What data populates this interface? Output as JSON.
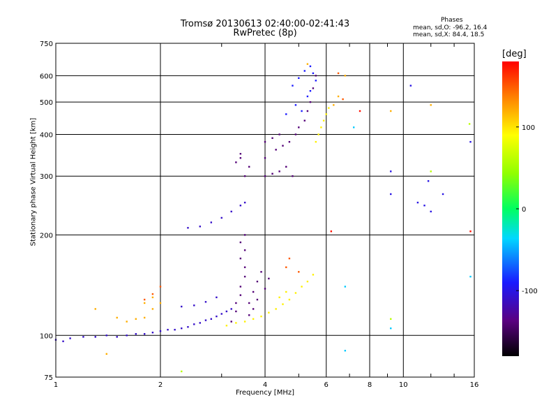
{
  "header": {
    "title_line1": "Tromsø 20130613 02:40:00-02:41:43",
    "title_line2": "RwPretec (8p)",
    "phases_title": "Phases",
    "phases_o": "mean, sd,O: -96.2, 16.4",
    "phases_x": "mean, sd,X: 84.4, 18.5"
  },
  "colorbar": {
    "unit": "[deg]",
    "range": [
      -180,
      180
    ],
    "ticks": [
      "100",
      "0",
      "-100"
    ],
    "tick_values": [
      100,
      0,
      -100
    ]
  },
  "chart_data": {
    "type": "scatter",
    "xlabel": "Frequency [MHz]",
    "ylabel": "Stationary phase Virtual Height [km]",
    "xscale": "log",
    "yscale": "log",
    "xlim": [
      1,
      16
    ],
    "ylim": [
      75,
      750
    ],
    "x_ticks": [
      1,
      2,
      4,
      6,
      8,
      10,
      16
    ],
    "x_tick_labels": [
      "1",
      "2",
      "4",
      "6",
      "8",
      "10",
      "16"
    ],
    "y_ticks": [
      75,
      100,
      200,
      300,
      400,
      500,
      600,
      750
    ],
    "y_tick_labels": [
      "75",
      "100",
      "200",
      "300",
      "400",
      "500",
      "600",
      "750"
    ],
    "grid": true,
    "series": [
      {
        "color_value": -110,
        "points": [
          [
            1.0,
            97
          ],
          [
            1.05,
            96
          ],
          [
            1.1,
            98
          ],
          [
            1.2,
            99
          ],
          [
            1.3,
            99
          ],
          [
            1.4,
            100
          ],
          [
            1.5,
            99
          ],
          [
            1.6,
            100
          ],
          [
            1.7,
            101
          ],
          [
            1.8,
            101
          ],
          [
            1.9,
            102
          ],
          [
            2.0,
            103
          ],
          [
            2.1,
            104
          ],
          [
            2.2,
            104
          ],
          [
            2.3,
            105
          ],
          [
            2.4,
            106
          ],
          [
            2.5,
            108
          ],
          [
            2.6,
            109
          ],
          [
            2.7,
            111
          ],
          [
            2.8,
            112
          ],
          [
            2.9,
            114
          ],
          [
            3.0,
            116
          ],
          [
            3.1,
            118
          ],
          [
            3.2,
            120
          ],
          [
            2.3,
            122
          ],
          [
            2.5,
            123
          ],
          [
            2.7,
            126
          ],
          [
            2.9,
            130
          ],
          [
            2.4,
            210
          ],
          [
            2.6,
            212
          ],
          [
            2.8,
            218
          ],
          [
            3.0,
            225
          ],
          [
            3.2,
            235
          ],
          [
            3.4,
            245
          ],
          [
            3.5,
            250
          ]
        ]
      },
      {
        "color_value": -140,
        "points": [
          [
            3.2,
            110
          ],
          [
            3.3,
            118
          ],
          [
            3.3,
            125
          ],
          [
            3.4,
            132
          ],
          [
            3.4,
            140
          ],
          [
            3.5,
            150
          ],
          [
            3.5,
            160
          ],
          [
            3.4,
            170
          ],
          [
            3.5,
            180
          ],
          [
            3.4,
            190
          ],
          [
            3.5,
            200
          ],
          [
            3.6,
            115
          ],
          [
            3.6,
            125
          ],
          [
            3.7,
            135
          ],
          [
            3.8,
            145
          ],
          [
            3.9,
            155
          ],
          [
            3.7,
            120
          ],
          [
            3.8,
            128
          ],
          [
            4.0,
            138
          ],
          [
            4.1,
            148
          ],
          [
            3.3,
            330
          ],
          [
            3.4,
            340
          ],
          [
            3.4,
            350
          ],
          [
            3.5,
            300
          ],
          [
            3.6,
            320
          ],
          [
            4.0,
            300
          ],
          [
            4.2,
            305
          ],
          [
            4.4,
            310
          ],
          [
            4.6,
            320
          ],
          [
            4.8,
            300
          ],
          [
            4.0,
            380
          ],
          [
            4.2,
            390
          ],
          [
            4.4,
            400
          ],
          [
            4.0,
            340
          ],
          [
            4.3,
            360
          ],
          [
            4.5,
            370
          ],
          [
            4.7,
            380
          ],
          [
            4.9,
            400
          ],
          [
            5.0,
            420
          ],
          [
            5.2,
            440
          ],
          [
            5.3,
            470
          ],
          [
            5.4,
            500
          ],
          [
            5.5,
            550
          ],
          [
            5.6,
            600
          ]
        ]
      },
      {
        "color_value": -90,
        "points": [
          [
            4.8,
            560
          ],
          [
            5.0,
            590
          ],
          [
            5.2,
            620
          ],
          [
            5.4,
            640
          ],
          [
            5.5,
            610
          ],
          [
            5.6,
            580
          ],
          [
            5.1,
            470
          ],
          [
            5.3,
            520
          ],
          [
            5.4,
            540
          ],
          [
            4.6,
            460
          ],
          [
            4.9,
            490
          ]
        ]
      },
      {
        "color_value": 95,
        "points": [
          [
            3.1,
            107
          ],
          [
            3.3,
            109
          ],
          [
            3.5,
            110
          ],
          [
            3.7,
            112
          ],
          [
            3.9,
            114
          ],
          [
            4.1,
            117
          ],
          [
            4.3,
            120
          ],
          [
            4.5,
            124
          ],
          [
            4.7,
            128
          ],
          [
            4.9,
            134
          ],
          [
            5.1,
            140
          ],
          [
            5.3,
            145
          ],
          [
            5.5,
            152
          ],
          [
            4.4,
            130
          ],
          [
            4.6,
            135
          ],
          [
            5.6,
            380
          ],
          [
            5.7,
            400
          ],
          [
            5.8,
            420
          ],
          [
            5.9,
            440
          ],
          [
            6.0,
            460
          ],
          [
            6.1,
            480
          ]
        ]
      },
      {
        "color_value": 120,
        "points": [
          [
            1.6,
            110
          ],
          [
            1.7,
            112
          ],
          [
            1.8,
            113
          ],
          [
            1.9,
            120
          ],
          [
            2.0,
            125
          ],
          [
            1.5,
            113
          ],
          [
            1.8,
            125
          ],
          [
            1.9,
            130
          ],
          [
            6.3,
            490
          ],
          [
            6.5,
            520
          ],
          [
            6.8,
            600
          ],
          [
            1.4,
            88
          ],
          [
            1.3,
            120
          ],
          [
            5.3,
            650
          ],
          [
            9.2,
            470
          ],
          [
            12,
            490
          ]
        ]
      },
      {
        "color_value": 150,
        "points": [
          [
            1.8,
            128
          ],
          [
            1.9,
            133
          ],
          [
            2.0,
            140
          ],
          [
            4.6,
            160
          ],
          [
            4.7,
            170
          ],
          [
            5.0,
            155
          ],
          [
            6.5,
            610
          ],
          [
            6.7,
            510
          ]
        ]
      },
      {
        "color_value": 175,
        "points": [
          [
            6.2,
            205
          ],
          [
            7.5,
            470
          ],
          [
            15.6,
            205
          ]
        ]
      },
      {
        "color_value": -40,
        "points": [
          [
            6.8,
            140
          ],
          [
            6.8,
            90
          ],
          [
            9.2,
            105
          ],
          [
            15.6,
            150
          ],
          [
            7.2,
            420
          ]
        ]
      },
      {
        "color_value": -100,
        "points": [
          [
            9.2,
            310
          ],
          [
            10.5,
            560
          ],
          [
            11.0,
            250
          ],
          [
            11.5,
            245
          ],
          [
            12.0,
            235
          ],
          [
            13.0,
            265
          ],
          [
            15.6,
            380
          ],
          [
            11.8,
            290
          ],
          [
            9.2,
            265
          ]
        ]
      },
      {
        "color_value": 60,
        "points": [
          [
            2.3,
            78
          ],
          [
            15.5,
            430
          ],
          [
            9.2,
            112
          ],
          [
            12,
            310
          ]
        ]
      }
    ]
  }
}
